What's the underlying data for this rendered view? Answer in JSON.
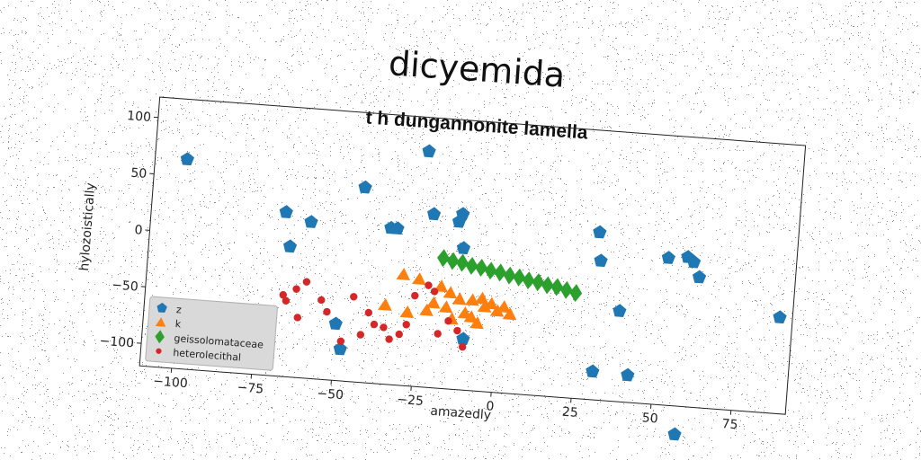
{
  "chart_data": {
    "type": "scatter",
    "title": "dicyemida",
    "subtitle": "t h dungannonite lamella",
    "xlabel": "amazedly",
    "ylabel": "hylozoistically",
    "xlim": [
      -110,
      92
    ],
    "ylim": [
      -120,
      118
    ],
    "xticks": [
      -100,
      -75,
      -50,
      -25,
      0,
      25,
      50,
      75
    ],
    "yticks": [
      -100,
      -50,
      0,
      50,
      100
    ],
    "legend_position": "lower-left",
    "series": [
      {
        "name": "z",
        "marker": "pentagon",
        "color": "#1f77b4",
        "points": [
          [
            -100,
            65
          ],
          [
            -68,
            25
          ],
          [
            -60,
            18
          ],
          [
            -66,
            -5
          ],
          [
            -44,
            52
          ],
          [
            -35,
            18
          ],
          [
            -33,
            18
          ],
          [
            -25,
            88
          ],
          [
            -22,
            33
          ],
          [
            -14,
            28
          ],
          [
            -13,
            35
          ],
          [
            -12,
            5
          ],
          [
            -10,
            -75
          ],
          [
            -50,
            -70
          ],
          [
            -48,
            -92
          ],
          [
            30,
            28
          ],
          [
            31,
            3
          ],
          [
            38,
            -40
          ],
          [
            31,
            -95
          ],
          [
            42,
            -96
          ],
          [
            52,
            10
          ],
          [
            58,
            12
          ],
          [
            60,
            8
          ],
          [
            62,
            -5
          ],
          [
            88,
            -35
          ],
          [
            58,
            -145
          ]
        ]
      },
      {
        "name": "k",
        "marker": "triangle",
        "color": "#ff7f0e",
        "points": [
          [
            -30,
            -22
          ],
          [
            -25,
            -25
          ],
          [
            -18,
            -30
          ],
          [
            -15,
            -35
          ],
          [
            -12,
            -40
          ],
          [
            -8,
            -40
          ],
          [
            -5,
            -38
          ],
          [
            -2,
            -42
          ],
          [
            0,
            -48
          ],
          [
            4,
            -50
          ],
          [
            -20,
            -45
          ],
          [
            -22,
            -52
          ],
          [
            -35,
            -50
          ],
          [
            -10,
            -52
          ],
          [
            -6,
            -60
          ],
          [
            -14,
            -58
          ],
          [
            -4,
            -45
          ],
          [
            -28,
            -55
          ],
          [
            2,
            -44
          ],
          [
            -16,
            -48
          ],
          [
            -8,
            -55
          ]
        ]
      },
      {
        "name": "geissolomataceae",
        "marker": "diamond",
        "color": "#2ca02c",
        "points": [
          [
            -18,
            -5
          ],
          [
            -15,
            -7
          ],
          [
            -12,
            -8
          ],
          [
            -9,
            -10
          ],
          [
            -6,
            -11
          ],
          [
            -3,
            -13
          ],
          [
            0,
            -14
          ],
          [
            3,
            -16
          ],
          [
            6,
            -17
          ],
          [
            9,
            -19
          ],
          [
            12,
            -20
          ],
          [
            15,
            -22
          ],
          [
            18,
            -23
          ],
          [
            21,
            -25
          ],
          [
            24,
            -27
          ]
        ]
      },
      {
        "name": "heterolecithal",
        "marker": "circle",
        "color": "#d62728",
        "points": [
          [
            -67,
            -48
          ],
          [
            -66,
            -53
          ],
          [
            -63,
            -42
          ],
          [
            -60,
            -35
          ],
          [
            -62,
            -67
          ],
          [
            -55,
            -50
          ],
          [
            -53,
            -60
          ],
          [
            -45,
            -45
          ],
          [
            -40,
            -58
          ],
          [
            -38,
            -68
          ],
          [
            -33,
            -80
          ],
          [
            -30,
            -75
          ],
          [
            -28,
            -66
          ],
          [
            -26,
            -40
          ],
          [
            -22,
            -30
          ],
          [
            -20,
            -35
          ],
          [
            -18,
            -72
          ],
          [
            -15,
            -60
          ],
          [
            -12,
            -68
          ],
          [
            -10,
            -82
          ],
          [
            -35,
            -70
          ],
          [
            -42,
            -78
          ],
          [
            -48,
            -85
          ]
        ]
      }
    ]
  }
}
